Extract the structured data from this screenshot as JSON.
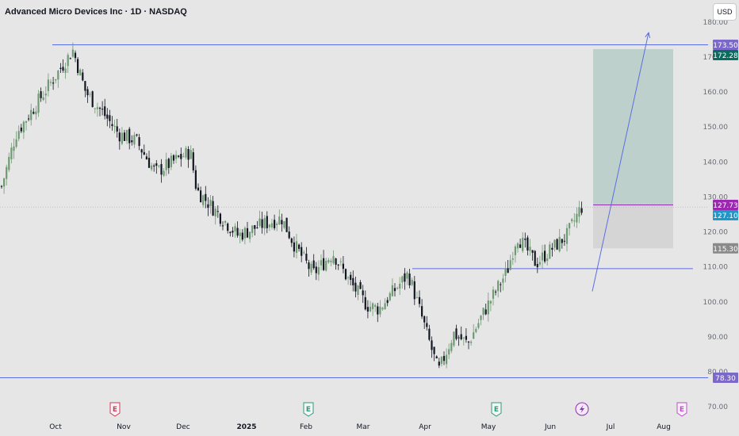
{
  "header": {
    "title": "Advanced Micro Devices Inc · 1D · NASDAQ",
    "currency_button": "USD"
  },
  "colors": {
    "background": "#e6e6e6",
    "up_candle": "#6f9a73",
    "down_candle": "#131722",
    "level_line": "#5b6ee1",
    "profit_zone": "#b8cdc9",
    "loss_zone": "#d3d3d3",
    "entry_line": "#8e2fb0",
    "earnings_red": "#d23a5a",
    "earnings_green": "#2e9b7a",
    "dividend_purple": "#8e2fb0",
    "earnings_pink": "#c44ad0"
  },
  "chart_data": {
    "type": "candlestick",
    "symbol": "AMD",
    "exchange": "NASDAQ",
    "interval": "1D",
    "currency": "USD",
    "ylim": [
      70,
      180
    ],
    "y_ticks": [
      70,
      80,
      90,
      100,
      110,
      120,
      130,
      140,
      150,
      160,
      170,
      180
    ],
    "x_tick_labels": [
      "Oct",
      "Nov",
      "Dec",
      "2025",
      "Feb",
      "Mar",
      "Apr",
      "May",
      "Jun",
      "Jul",
      "Aug"
    ],
    "series": [
      {
        "name": "close",
        "x": [
          "Sep",
          "Oct",
          "Oct",
          "Nov",
          "Nov",
          "Dec",
          "Dec",
          "Jan",
          "Feb",
          "Feb",
          "Mar",
          "Mar",
          "Apr",
          "Apr",
          "Apr",
          "May",
          "May",
          "Jun",
          "Jun"
        ],
        "values": [
          133,
          155,
          172,
          145,
          132,
          142,
          126,
          122,
          114,
          119,
          106,
          99,
          109,
          78.5,
          90,
          103,
          116,
          113,
          127.1
        ]
      }
    ],
    "horizontal_levels": [
      {
        "value": 173.5,
        "label": "173.50"
      },
      {
        "value": 109.5,
        "label": ""
      },
      {
        "value": 78.3,
        "label": "78.30"
      }
    ],
    "price_labels": [
      {
        "value": 173.5,
        "text": "173.50",
        "color": "#7b68c9"
      },
      {
        "value": 172.28,
        "text": "172.28",
        "color": "#0b6b5e"
      },
      {
        "value": 127.73,
        "text": "127.73",
        "color": "#9c27b0"
      },
      {
        "value": 127.1,
        "text": "127.10",
        "color": "#2196c8"
      },
      {
        "value": 115.3,
        "text": "115.30",
        "color": "#8a8a8a"
      },
      {
        "value": 78.3,
        "text": "78.30",
        "color": "#7b68c9"
      }
    ],
    "position_tool": {
      "entry": 127.73,
      "target": 172.28,
      "stop": 115.3
    },
    "projection_arrow": {
      "from_value": 103,
      "to_value": 177
    },
    "event_markers": [
      {
        "label": "E",
        "month": "Nov",
        "kind": "earnings",
        "color": "#d23a5a"
      },
      {
        "label": "E",
        "month": "2025",
        "kind": "earnings",
        "color": "#2e9b7a"
      },
      {
        "label": "E",
        "month": "May",
        "kind": "earnings",
        "color": "#2e9b7a"
      },
      {
        "label": "",
        "month": "Jun",
        "kind": "dividend",
        "color": "#8e2fb0"
      },
      {
        "label": "E",
        "month": "Aug",
        "kind": "earnings",
        "color": "#c44ad0"
      }
    ]
  }
}
